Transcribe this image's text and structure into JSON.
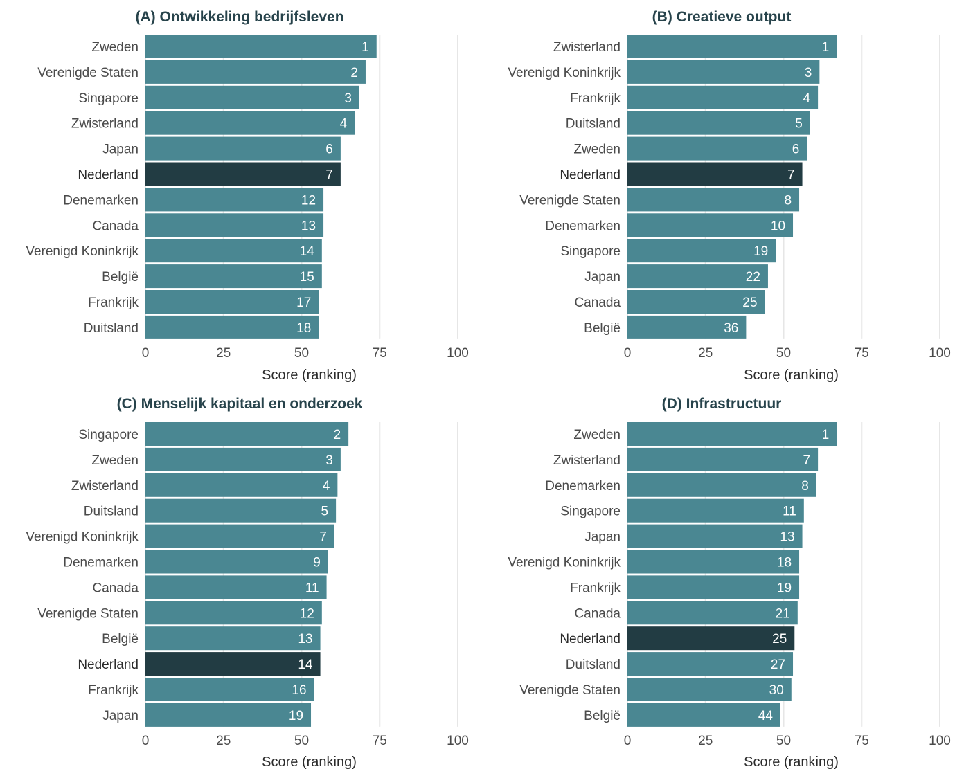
{
  "colors": {
    "bar": "#4a8792",
    "highlight_bar": "#223c43",
    "gridline": "#e6e6e6",
    "title": "#27434b"
  },
  "highlight_category": "Nederland",
  "chart_data": [
    {
      "type": "bar",
      "orientation": "horizontal",
      "title": "(A) Ontwikkeling bedrijfsleven",
      "xlabel": "Score (ranking)",
      "ylabel": "",
      "xlim": [
        0,
        100
      ],
      "xticks": [
        "0",
        "25",
        "50",
        "75",
        "100"
      ],
      "grid": true,
      "categories": [
        "Zweden",
        "Verenigde Staten",
        "Singapore",
        "Zwisterland",
        "Japan",
        "Nederland",
        "Denemarken",
        "Canada",
        "Verenigd Koninkrijk",
        "België",
        "Frankrijk",
        "Duitsland"
      ],
      "values": [
        74,
        70.5,
        68.5,
        67,
        62.5,
        62.5,
        57,
        57,
        56.5,
        56.5,
        55.5,
        55.5
      ],
      "rank_labels": [
        "1",
        "2",
        "3",
        "4",
        "6",
        "7",
        "12",
        "13",
        "14",
        "15",
        "17",
        "18"
      ]
    },
    {
      "type": "bar",
      "orientation": "horizontal",
      "title": "(B) Creatieve output",
      "xlabel": "Score (ranking)",
      "ylabel": "",
      "xlim": [
        0,
        100
      ],
      "xticks": [
        "0",
        "25",
        "50",
        "75",
        "100"
      ],
      "grid": true,
      "categories": [
        "Zwisterland",
        "Verenigd Koninkrijk",
        "Frankrijk",
        "Duitsland",
        "Zweden",
        "Nederland",
        "Verenigde Staten",
        "Denemarken",
        "Singapore",
        "Japan",
        "Canada",
        "België"
      ],
      "values": [
        67,
        61.5,
        61,
        58.5,
        57.5,
        56,
        55,
        53,
        47.5,
        45,
        44,
        38
      ],
      "rank_labels": [
        "1",
        "3",
        "4",
        "5",
        "6",
        "7",
        "8",
        "10",
        "19",
        "22",
        "25",
        "36"
      ]
    },
    {
      "type": "bar",
      "orientation": "horizontal",
      "title": "(C) Menselijk kapitaal en onderzoek",
      "xlabel": "Score (ranking)",
      "ylabel": "",
      "xlim": [
        0,
        100
      ],
      "xticks": [
        "0",
        "25",
        "50",
        "75",
        "100"
      ],
      "grid": true,
      "categories": [
        "Singapore",
        "Zweden",
        "Zwisterland",
        "Duitsland",
        "Verenigd Koninkrijk",
        "Denemarken",
        "Canada",
        "Verenigde Staten",
        "België",
        "Nederland",
        "Frankrijk",
        "Japan"
      ],
      "values": [
        65,
        62.5,
        61.5,
        61,
        60.5,
        58.5,
        58,
        56.5,
        56,
        56,
        54,
        53
      ],
      "rank_labels": [
        "2",
        "3",
        "4",
        "5",
        "7",
        "9",
        "11",
        "12",
        "13",
        "14",
        "16",
        "19"
      ]
    },
    {
      "type": "bar",
      "orientation": "horizontal",
      "title": "(D) Infrastructuur",
      "xlabel": "Score (ranking)",
      "ylabel": "",
      "xlim": [
        0,
        100
      ],
      "xticks": [
        "0",
        "25",
        "50",
        "75",
        "100"
      ],
      "grid": true,
      "categories": [
        "Zweden",
        "Zwisterland",
        "Denemarken",
        "Singapore",
        "Japan",
        "Verenigd Koninkrijk",
        "Frankrijk",
        "Canada",
        "Nederland",
        "Duitsland",
        "Verenigde Staten",
        "België"
      ],
      "values": [
        67,
        61,
        60.5,
        56.5,
        56,
        55,
        55,
        54.5,
        53.5,
        53,
        52.5,
        49
      ],
      "rank_labels": [
        "1",
        "7",
        "8",
        "11",
        "13",
        "18",
        "19",
        "21",
        "25",
        "27",
        "30",
        "44"
      ]
    }
  ]
}
